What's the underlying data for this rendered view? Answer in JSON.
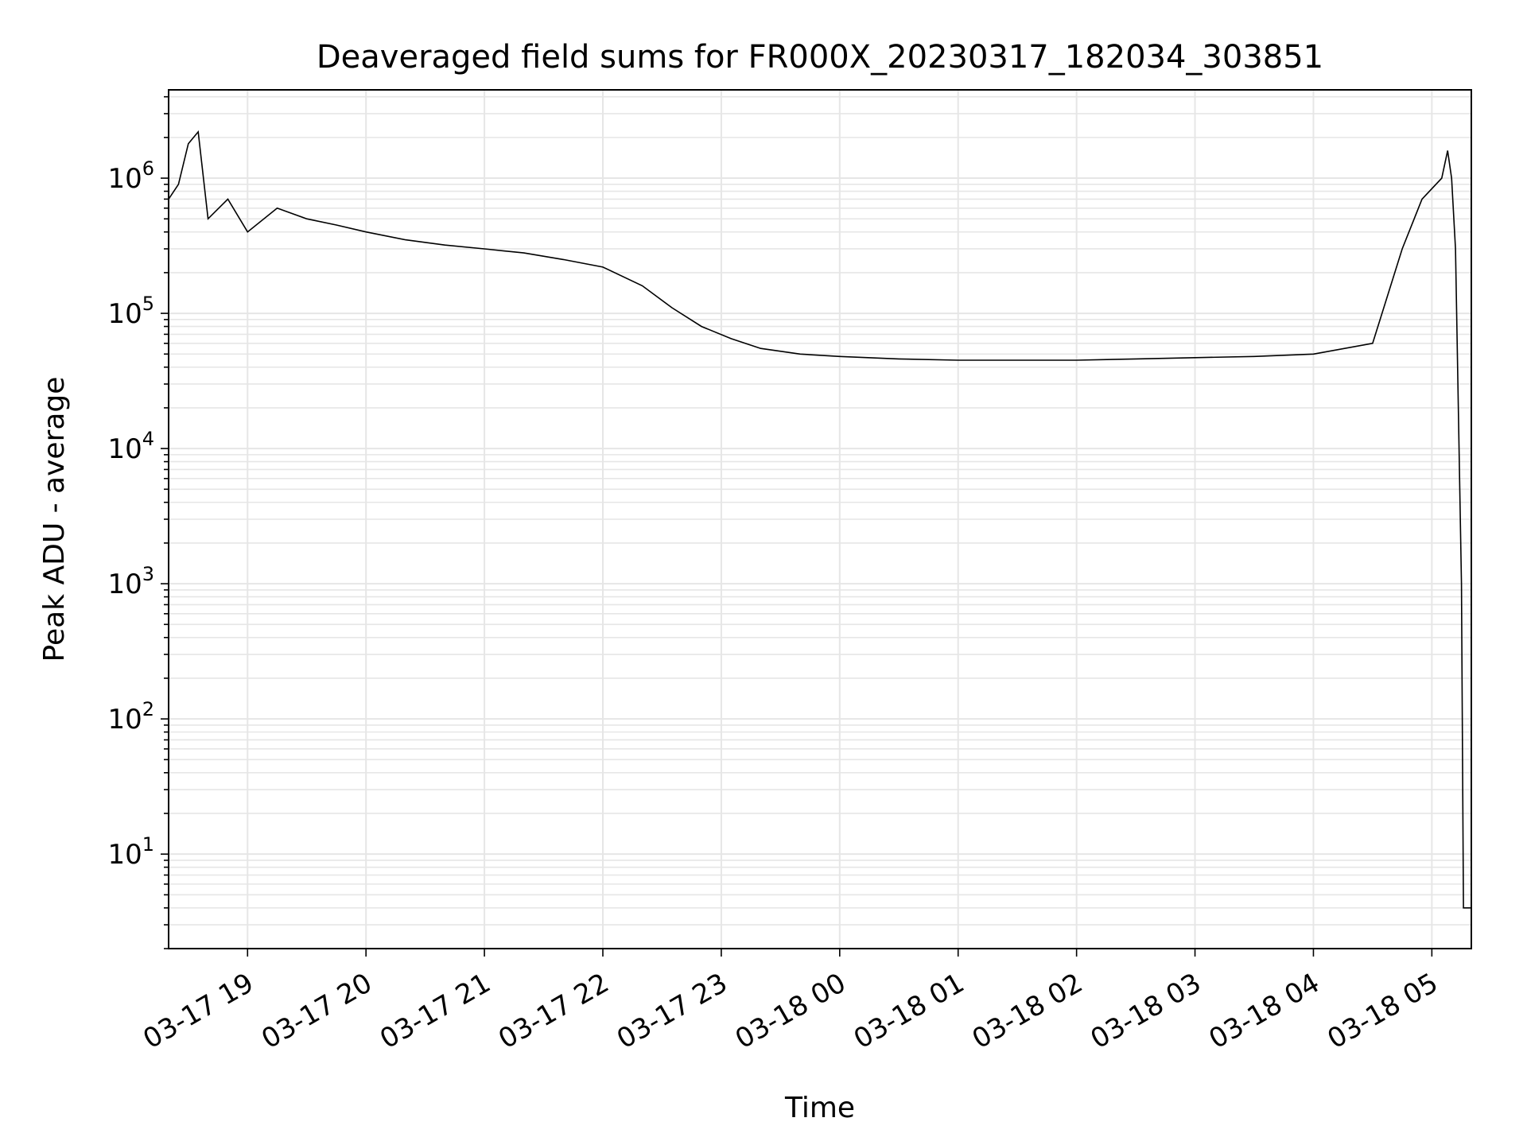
{
  "chart_data": {
    "type": "line",
    "title": "Deaveraged field sums for FR000X_20230317_182034_303851",
    "xlabel": "Time",
    "ylabel": "Peak ADU - average",
    "yscale": "log",
    "grid": true,
    "line_color": "#000000",
    "grid_color": "#e6e6e6",
    "xlim": [
      "2023-03-17 18:20",
      "2023-03-18 05:20"
    ],
    "ylim": [
      2,
      4500000
    ],
    "x_ticks": [
      "03-17 19",
      "03-17 20",
      "03-17 21",
      "03-17 22",
      "03-17 23",
      "03-18 00",
      "03-18 01",
      "03-18 02",
      "03-18 03",
      "03-18 04",
      "03-18 05"
    ],
    "y_ticks": [
      {
        "base": "10",
        "exp": "1"
      },
      {
        "base": "10",
        "exp": "2"
      },
      {
        "base": "10",
        "exp": "3"
      },
      {
        "base": "10",
        "exp": "4"
      },
      {
        "base": "10",
        "exp": "5"
      },
      {
        "base": "10",
        "exp": "6"
      }
    ],
    "series": [
      {
        "points": [
          [
            "2023-03-17 18:20",
            700000
          ],
          [
            "2023-03-17 18:25",
            900000
          ],
          [
            "2023-03-17 18:30",
            1800000
          ],
          [
            "2023-03-17 18:35",
            2200000
          ],
          [
            "2023-03-17 18:40",
            500000
          ],
          [
            "2023-03-17 18:50",
            700000
          ],
          [
            "2023-03-17 19:00",
            400000
          ],
          [
            "2023-03-17 19:15",
            600000
          ],
          [
            "2023-03-17 19:30",
            500000
          ],
          [
            "2023-03-17 19:45",
            450000
          ],
          [
            "2023-03-17 20:00",
            400000
          ],
          [
            "2023-03-17 20:20",
            350000
          ],
          [
            "2023-03-17 20:40",
            320000
          ],
          [
            "2023-03-17 21:00",
            300000
          ],
          [
            "2023-03-17 21:20",
            280000
          ],
          [
            "2023-03-17 21:40",
            250000
          ],
          [
            "2023-03-17 22:00",
            220000
          ],
          [
            "2023-03-17 22:20",
            160000
          ],
          [
            "2023-03-17 22:35",
            110000
          ],
          [
            "2023-03-17 22:50",
            80000
          ],
          [
            "2023-03-17 23:05",
            65000
          ],
          [
            "2023-03-17 23:20",
            55000
          ],
          [
            "2023-03-17 23:40",
            50000
          ],
          [
            "2023-03-18 00:00",
            48000
          ],
          [
            "2023-03-18 00:30",
            46000
          ],
          [
            "2023-03-18 01:00",
            45000
          ],
          [
            "2023-03-18 01:30",
            45000
          ],
          [
            "2023-03-18 02:00",
            45000
          ],
          [
            "2023-03-18 02:30",
            46000
          ],
          [
            "2023-03-18 03:00",
            47000
          ],
          [
            "2023-03-18 03:30",
            48000
          ],
          [
            "2023-03-18 04:00",
            50000
          ],
          [
            "2023-03-18 04:30",
            60000
          ],
          [
            "2023-03-18 04:45",
            300000
          ],
          [
            "2023-03-18 04:55",
            700000
          ],
          [
            "2023-03-18 05:05",
            1000000
          ],
          [
            "2023-03-18 05:08",
            1600000
          ],
          [
            "2023-03-18 05:10",
            1000000
          ],
          [
            "2023-03-18 05:12",
            300000
          ],
          [
            "2023-03-18 05:15",
            1000
          ],
          [
            "2023-03-18 05:16",
            4
          ],
          [
            "2023-03-18 05:20",
            4
          ]
        ]
      }
    ]
  }
}
